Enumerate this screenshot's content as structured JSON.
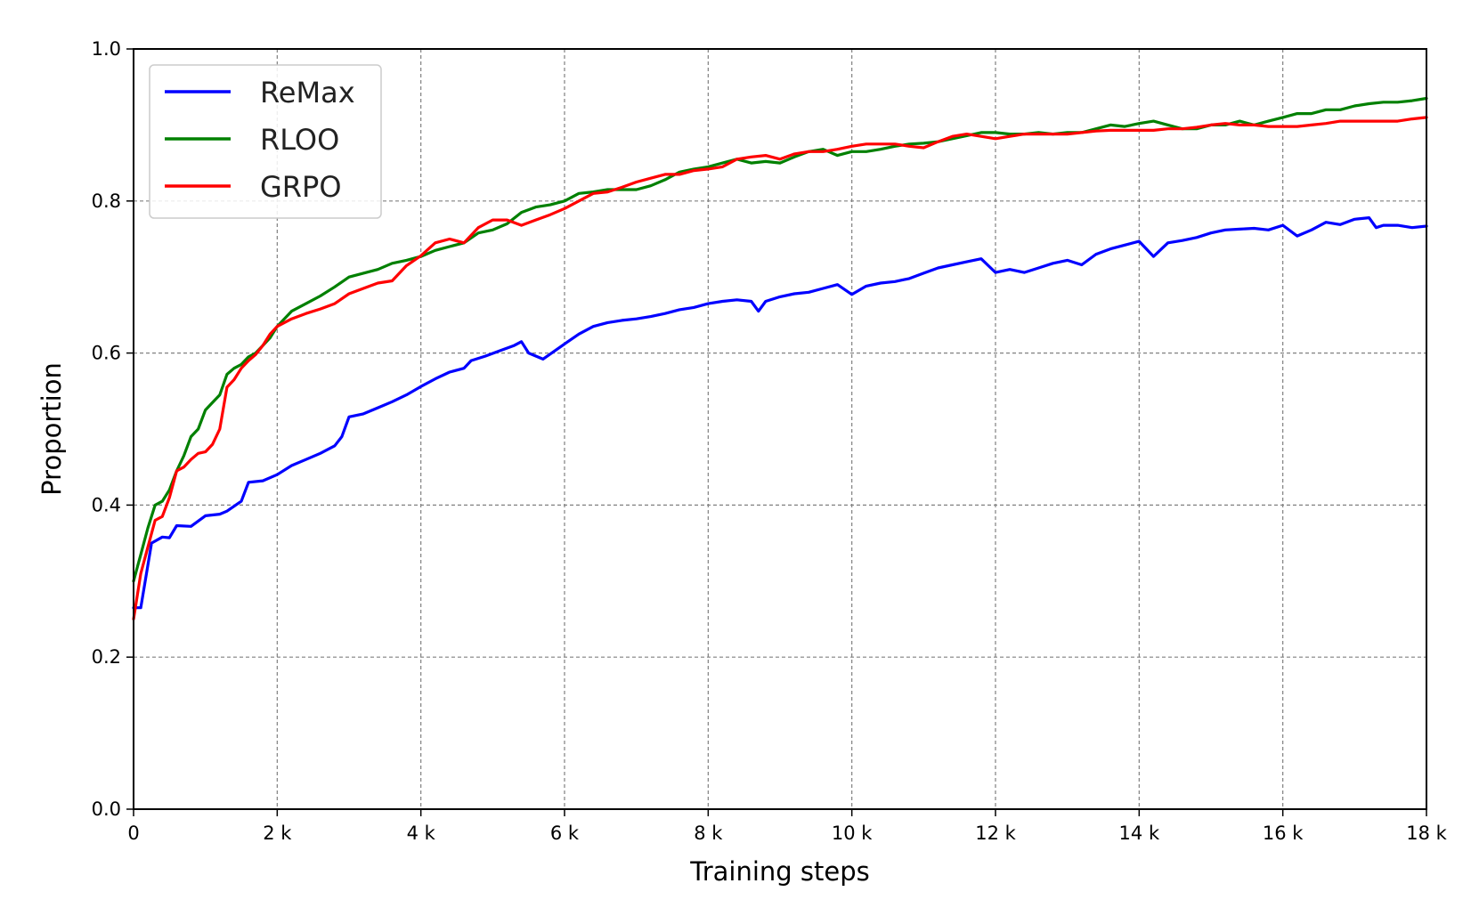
{
  "chart_data": {
    "type": "line",
    "xlabel": "Training steps",
    "ylabel": "Proportion",
    "xlim": [
      0,
      18000
    ],
    "ylim": [
      0.0,
      1.0
    ],
    "grid": true,
    "legend_position": "top-left",
    "xticks": [
      {
        "value": 0,
        "label": "0"
      },
      {
        "value": 2000,
        "label": "2 k"
      },
      {
        "value": 4000,
        "label": "4 k"
      },
      {
        "value": 6000,
        "label": "6 k"
      },
      {
        "value": 8000,
        "label": "8 k"
      },
      {
        "value": 10000,
        "label": "10 k"
      },
      {
        "value": 12000,
        "label": "12 k"
      },
      {
        "value": 14000,
        "label": "14 k"
      },
      {
        "value": 16000,
        "label": "16 k"
      },
      {
        "value": 18000,
        "label": "18 k"
      }
    ],
    "yticks": [
      {
        "value": 0.0,
        "label": "0.0"
      },
      {
        "value": 0.2,
        "label": "0.2"
      },
      {
        "value": 0.4,
        "label": "0.4"
      },
      {
        "value": 0.6,
        "label": "0.6"
      },
      {
        "value": 0.8,
        "label": "0.8"
      },
      {
        "value": 1.0,
        "label": "1.0"
      }
    ],
    "series": [
      {
        "name": "ReMax",
        "color": "#0000ff",
        "x": [
          0,
          100,
          250,
          400,
          500,
          600,
          800,
          1000,
          1200,
          1300,
          1500,
          1600,
          1800,
          2000,
          2200,
          2400,
          2600,
          2800,
          2900,
          3000,
          3200,
          3400,
          3600,
          3800,
          4000,
          4200,
          4400,
          4600,
          4700,
          4900,
          5100,
          5300,
          5400,
          5500,
          5700,
          6000,
          6200,
          6400,
          6600,
          6800,
          7000,
          7200,
          7400,
          7600,
          7800,
          8000,
          8200,
          8400,
          8600,
          8700,
          8800,
          9000,
          9200,
          9400,
          9600,
          9800,
          10000,
          10200,
          10400,
          10600,
          10800,
          11000,
          11200,
          11400,
          11600,
          11800,
          12000,
          12200,
          12400,
          12600,
          12800,
          13000,
          13200,
          13400,
          13600,
          13800,
          14000,
          14200,
          14400,
          14600,
          14800,
          15000,
          15200,
          15400,
          15600,
          15800,
          16000,
          16200,
          16400,
          16600,
          16800,
          17000,
          17200,
          17300,
          17400,
          17600,
          17800,
          18000
        ],
        "y": [
          0.265,
          0.265,
          0.35,
          0.358,
          0.357,
          0.373,
          0.372,
          0.386,
          0.388,
          0.392,
          0.405,
          0.43,
          0.432,
          0.44,
          0.452,
          0.46,
          0.468,
          0.478,
          0.49,
          0.516,
          0.52,
          0.528,
          0.536,
          0.545,
          0.556,
          0.566,
          0.575,
          0.58,
          0.59,
          0.596,
          0.603,
          0.61,
          0.615,
          0.6,
          0.592,
          0.612,
          0.625,
          0.635,
          0.64,
          0.643,
          0.645,
          0.648,
          0.652,
          0.657,
          0.66,
          0.665,
          0.668,
          0.67,
          0.668,
          0.655,
          0.668,
          0.674,
          0.678,
          0.68,
          0.685,
          0.69,
          0.677,
          0.688,
          0.692,
          0.694,
          0.698,
          0.705,
          0.712,
          0.716,
          0.72,
          0.724,
          0.706,
          0.71,
          0.706,
          0.712,
          0.718,
          0.722,
          0.716,
          0.73,
          0.737,
          0.742,
          0.747,
          0.727,
          0.745,
          0.748,
          0.752,
          0.758,
          0.762,
          0.763,
          0.764,
          0.762,
          0.768,
          0.754,
          0.762,
          0.772,
          0.769,
          0.776,
          0.778,
          0.765,
          0.768,
          0.768,
          0.765,
          0.767
        ]
      },
      {
        "name": "RLOO",
        "color": "#008000",
        "x": [
          0,
          100,
          200,
          300,
          400,
          500,
          600,
          700,
          800,
          900,
          1000,
          1100,
          1200,
          1300,
          1400,
          1500,
          1600,
          1700,
          1800,
          1900,
          2000,
          2200,
          2400,
          2600,
          2800,
          3000,
          3200,
          3400,
          3600,
          3800,
          4000,
          4200,
          4400,
          4600,
          4800,
          5000,
          5200,
          5400,
          5600,
          5800,
          6000,
          6200,
          6400,
          6600,
          6800,
          7000,
          7200,
          7400,
          7600,
          7800,
          8000,
          8200,
          8400,
          8600,
          8800,
          9000,
          9200,
          9400,
          9600,
          9800,
          10000,
          10200,
          10400,
          10600,
          10800,
          11000,
          11200,
          11400,
          11600,
          11800,
          12000,
          12200,
          12400,
          12600,
          12800,
          13000,
          13200,
          13400,
          13600,
          13800,
          14000,
          14200,
          14400,
          14600,
          14800,
          15000,
          15200,
          15400,
          15600,
          15800,
          16000,
          16200,
          16400,
          16600,
          16800,
          17000,
          17200,
          17400,
          17600,
          17800,
          18000
        ],
        "y": [
          0.3,
          0.335,
          0.37,
          0.4,
          0.405,
          0.42,
          0.445,
          0.465,
          0.49,
          0.5,
          0.525,
          0.535,
          0.545,
          0.572,
          0.58,
          0.585,
          0.595,
          0.6,
          0.61,
          0.62,
          0.635,
          0.655,
          0.665,
          0.675,
          0.687,
          0.7,
          0.705,
          0.71,
          0.718,
          0.722,
          0.727,
          0.735,
          0.74,
          0.745,
          0.758,
          0.762,
          0.77,
          0.785,
          0.792,
          0.795,
          0.8,
          0.81,
          0.812,
          0.815,
          0.815,
          0.815,
          0.82,
          0.828,
          0.838,
          0.842,
          0.845,
          0.85,
          0.855,
          0.85,
          0.852,
          0.85,
          0.858,
          0.865,
          0.868,
          0.86,
          0.865,
          0.865,
          0.868,
          0.872,
          0.875,
          0.876,
          0.878,
          0.882,
          0.886,
          0.89,
          0.89,
          0.888,
          0.888,
          0.89,
          0.888,
          0.89,
          0.89,
          0.895,
          0.9,
          0.898,
          0.902,
          0.905,
          0.9,
          0.895,
          0.895,
          0.9,
          0.9,
          0.905,
          0.9,
          0.905,
          0.91,
          0.915,
          0.915,
          0.92,
          0.92,
          0.925,
          0.928,
          0.93,
          0.93,
          0.932,
          0.935
        ]
      },
      {
        "name": "GRPO",
        "color": "#ff0000",
        "x": [
          0,
          100,
          200,
          300,
          400,
          500,
          600,
          700,
          800,
          900,
          1000,
          1100,
          1200,
          1300,
          1400,
          1500,
          1600,
          1700,
          1800,
          1900,
          2000,
          2200,
          2400,
          2600,
          2800,
          3000,
          3200,
          3400,
          3600,
          3800,
          4000,
          4200,
          4400,
          4600,
          4800,
          5000,
          5200,
          5400,
          5600,
          5800,
          6000,
          6200,
          6400,
          6600,
          6800,
          7000,
          7200,
          7400,
          7600,
          7800,
          8000,
          8200,
          8400,
          8600,
          8800,
          9000,
          9200,
          9400,
          9600,
          9800,
          10000,
          10200,
          10400,
          10600,
          10800,
          11000,
          11200,
          11400,
          11600,
          11800,
          12000,
          12200,
          12400,
          12600,
          12800,
          13000,
          13200,
          13400,
          13600,
          13800,
          14000,
          14200,
          14400,
          14600,
          14800,
          15000,
          15200,
          15400,
          15600,
          15800,
          16000,
          16200,
          16400,
          16600,
          16800,
          17000,
          17200,
          17400,
          17600,
          17800,
          18000
        ],
        "y": [
          0.25,
          0.31,
          0.345,
          0.38,
          0.385,
          0.41,
          0.445,
          0.45,
          0.46,
          0.468,
          0.47,
          0.48,
          0.5,
          0.555,
          0.565,
          0.58,
          0.59,
          0.598,
          0.61,
          0.625,
          0.635,
          0.645,
          0.652,
          0.658,
          0.665,
          0.678,
          0.685,
          0.692,
          0.695,
          0.715,
          0.728,
          0.745,
          0.75,
          0.745,
          0.765,
          0.775,
          0.775,
          0.768,
          0.775,
          0.782,
          0.79,
          0.8,
          0.81,
          0.812,
          0.818,
          0.825,
          0.83,
          0.835,
          0.835,
          0.84,
          0.842,
          0.845,
          0.855,
          0.858,
          0.86,
          0.855,
          0.862,
          0.865,
          0.865,
          0.868,
          0.872,
          0.875,
          0.875,
          0.875,
          0.872,
          0.87,
          0.878,
          0.885,
          0.888,
          0.885,
          0.882,
          0.885,
          0.888,
          0.888,
          0.888,
          0.888,
          0.89,
          0.892,
          0.893,
          0.893,
          0.893,
          0.893,
          0.895,
          0.895,
          0.897,
          0.9,
          0.902,
          0.9,
          0.9,
          0.898,
          0.898,
          0.898,
          0.9,
          0.902,
          0.905,
          0.905,
          0.905,
          0.905,
          0.905,
          0.908,
          0.91
        ]
      }
    ]
  }
}
